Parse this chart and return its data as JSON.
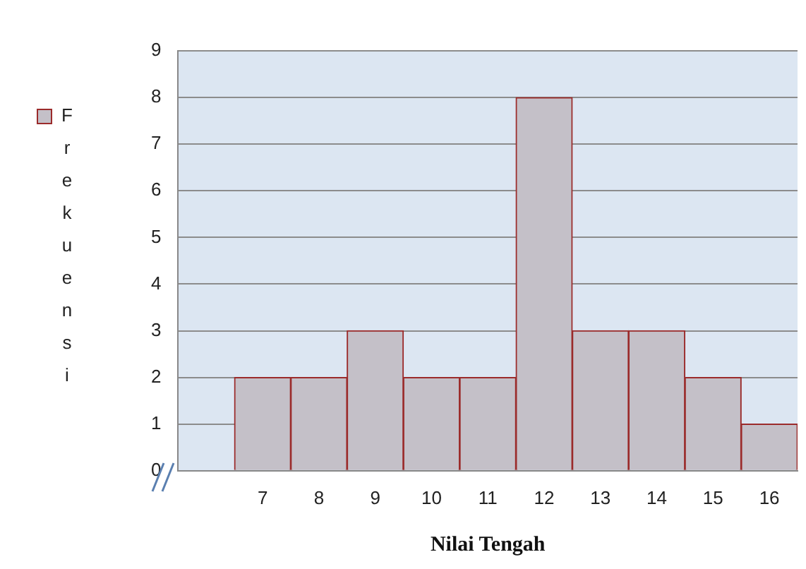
{
  "chart_data": {
    "type": "bar",
    "xlabel": "Nilai Tengah",
    "categories": [
      null,
      "7",
      "8",
      "9",
      "10",
      "11",
      "12",
      "13",
      "14",
      "15",
      "16"
    ],
    "series": [
      {
        "name": "Frekuensi",
        "color": "#c4c0c8",
        "values": [
          null,
          2,
          2,
          3,
          2,
          2,
          8,
          3,
          3,
          2,
          1
        ]
      }
    ],
    "ylim": [
      0,
      9
    ],
    "yticks": [
      0,
      1,
      2,
      3,
      4,
      5,
      6,
      7,
      8,
      9
    ],
    "grid": "y",
    "legend": "left"
  }
}
